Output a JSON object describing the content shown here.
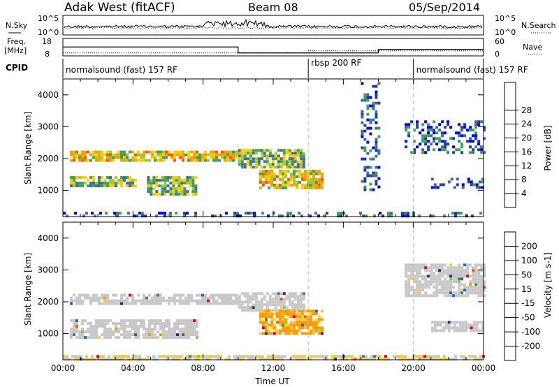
{
  "header": {
    "station": "Adak West (fitACF)",
    "beam": "Beam 08",
    "date": "05/Sep/2014"
  },
  "panel_labels": {
    "nsky": "N.Sky",
    "nsearch": "N.Search",
    "freq": "Freq.",
    "freq_unit": "[MHz]",
    "nave": "Nave",
    "cpid": "CPID"
  },
  "noise_axis": {
    "left_ticks": [
      "10^5",
      "10^0"
    ],
    "right_ticks": [
      "10^5",
      "10^0"
    ]
  },
  "freq_axis": {
    "left_ticks": [
      "18",
      "8"
    ],
    "right_ticks": [
      "60",
      "0"
    ]
  },
  "cpid_segments": [
    {
      "label": "normalsound (fast) 157 RF",
      "start_h": 0,
      "end_h": 14
    },
    {
      "label": "rbsp 200 RF",
      "start_h": 14,
      "end_h": 20
    },
    {
      "label": "normalsound (fast) 157 RF",
      "start_h": 20,
      "end_h": 24
    }
  ],
  "colorbars": {
    "power": {
      "label": "Power [dB]",
      "ticks": [
        "4",
        "8",
        "12",
        "16",
        "20",
        "24",
        "28"
      ],
      "colors": [
        "#0000ee",
        "#1a3f9e",
        "#3f6f8f",
        "#3f9f5f",
        "#a6c832",
        "#ffcc00",
        "#ff9900",
        "#ff5500",
        "#ee0000"
      ]
    },
    "velocity": {
      "label": "Velocity [m s-1]",
      "ticks": [
        "200",
        "100",
        "50",
        "15",
        "-15",
        "-50",
        "-100",
        "-200"
      ],
      "colors": [
        "#2030a0",
        "#3060c0",
        "#3f8f3f",
        "#7fcf3f",
        "#c8c8c8",
        "#ffcc33",
        "#ff9900",
        "#ff5500",
        "#ee0000"
      ]
    }
  },
  "chart_data": [
    {
      "type": "heatmap",
      "title": "Power",
      "xlabel": "",
      "ylabel": "Slant Range [km]",
      "xlim": [
        0,
        24
      ],
      "ylim": [
        180,
        4500
      ],
      "yticks": [
        1000,
        2000,
        3000,
        4000
      ],
      "color_scale": "power",
      "regions": [
        {
          "t0": 0.4,
          "t1": 10.0,
          "r0": 1950,
          "r1": 2250,
          "level": "high"
        },
        {
          "t0": 0.4,
          "t1": 4.2,
          "r0": 1150,
          "r1": 1450,
          "level": "mid"
        },
        {
          "t0": 4.8,
          "t1": 7.6,
          "r0": 900,
          "r1": 1450,
          "level": "mid"
        },
        {
          "t0": 10.0,
          "t1": 13.7,
          "r0": 1750,
          "r1": 2300,
          "level": "mid"
        },
        {
          "t0": 11.2,
          "t1": 14.8,
          "r0": 1100,
          "r1": 1650,
          "level": "high"
        },
        {
          "t0": 21.0,
          "t1": 24.0,
          "r0": 1100,
          "r1": 1400,
          "level": "low"
        },
        {
          "t0": 0.0,
          "t1": 24.0,
          "r0": 180,
          "r1": 330,
          "level": "low"
        },
        {
          "t0": 17.0,
          "t1": 18.0,
          "r0": 1000,
          "r1": 4400,
          "level": "low"
        },
        {
          "t0": 19.5,
          "t1": 24.0,
          "r0": 2200,
          "r1": 3200,
          "level": "low"
        }
      ]
    },
    {
      "type": "heatmap",
      "title": "Velocity",
      "xlabel": "Time UT",
      "ylabel": "Slant Range [km]",
      "xlim": [
        0,
        24
      ],
      "ylim": [
        180,
        4500
      ],
      "xticks": [
        "00:00",
        "04:00",
        "08:00",
        "12:00",
        "16:00",
        "20:00",
        "00:00"
      ],
      "yticks": [
        1000,
        2000,
        3000,
        4000
      ],
      "color_scale": "velocity",
      "regions": [
        {
          "t0": 0.4,
          "t1": 10.0,
          "r0": 1950,
          "r1": 2250,
          "velocity": 0
        },
        {
          "t0": 0.4,
          "t1": 7.6,
          "r0": 900,
          "r1": 1450,
          "velocity": 0
        },
        {
          "t0": 10.0,
          "t1": 13.7,
          "r0": 1750,
          "r1": 2300,
          "velocity": 0
        },
        {
          "t0": 11.2,
          "t1": 14.8,
          "r0": 1000,
          "r1": 1750,
          "velocity": -80
        },
        {
          "t0": 21.0,
          "t1": 24.0,
          "r0": 1100,
          "r1": 1400,
          "velocity": 0
        },
        {
          "t0": 0.0,
          "t1": 24.0,
          "r0": 180,
          "r1": 330,
          "velocity": -30
        },
        {
          "t0": 19.5,
          "t1": 24.0,
          "r0": 2200,
          "r1": 3200,
          "velocity": 0
        }
      ]
    }
  ]
}
